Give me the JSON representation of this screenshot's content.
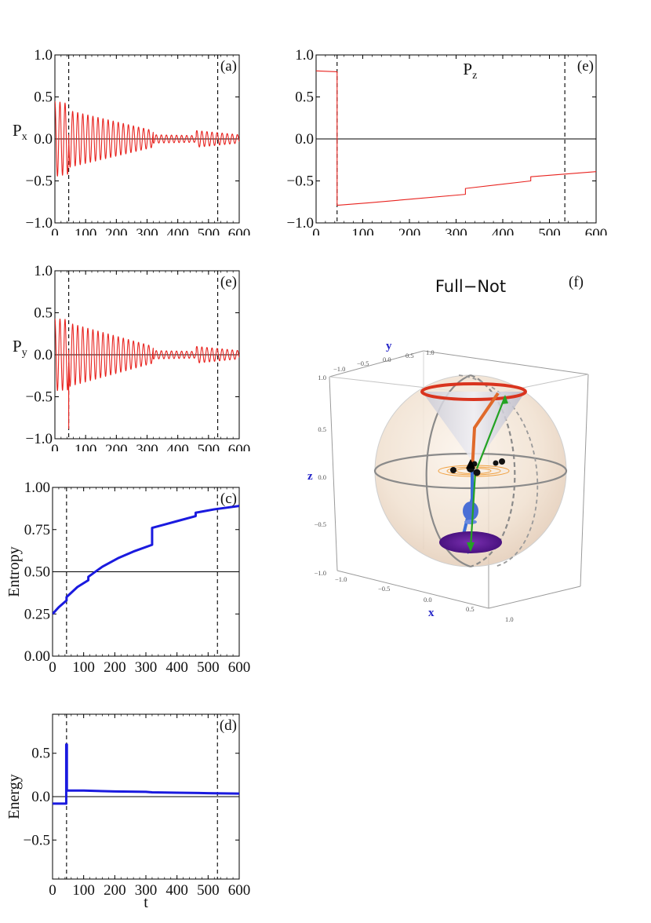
{
  "figure": {
    "f_title": "Full−Not",
    "f_label": "(f)",
    "sphere_axis_x": "x",
    "sphere_axis_y": "y",
    "sphere_axis_z": "z",
    "sphere_ticks": [
      "−1.0",
      "−0.5",
      "0.0",
      "0.5",
      "1.0"
    ]
  },
  "colors": {
    "polarization": "#e8231f",
    "thermo": "#1a1adf",
    "marker": "#000000",
    "axis_label_3d": "#2626c8",
    "cone_red": "#d9341e",
    "arrow_green": "#23a323",
    "disc_purple": "#5b1a8f"
  },
  "chart_data": [
    {
      "id": "px",
      "type": "line",
      "panel_label": "(a)",
      "title": "",
      "ylabel": "P",
      "ylabel_sub": "x",
      "xlabel": "",
      "xlim": [
        0,
        600
      ],
      "ylim": [
        -1.0,
        1.0
      ],
      "xticks": [
        "0",
        "100",
        "200",
        "300",
        "400",
        "500",
        "600"
      ],
      "yticks": [
        "−1.0",
        "−0.5",
        "0.0",
        "0.5",
        "1.0"
      ],
      "markers_t": [
        45,
        530
      ],
      "zero_line": 0,
      "series": [
        {
          "name": "Px",
          "model": "damped_oscillation",
          "period": 16.5,
          "segments": [
            {
              "t0": 0,
              "t1": 45,
              "amp_start": 0.45,
              "amp_end": 0.42
            },
            {
              "t0": 45,
              "t1": 320,
              "amp_start": 0.34,
              "amp_end": 0.1
            },
            {
              "t0": 320,
              "t1": 460,
              "amp_start": 0.05,
              "amp_end": 0.04
            },
            {
              "t0": 460,
              "t1": 600,
              "amp_start": 0.1,
              "amp_end": 0.05
            }
          ]
        }
      ]
    },
    {
      "id": "pz",
      "type": "line",
      "panel_label": "(e)",
      "title": "P",
      "title_sub": "z",
      "ylabel": "",
      "xlabel": "",
      "xlim": [
        0,
        600
      ],
      "ylim": [
        -1.0,
        1.0
      ],
      "xticks": [
        "0",
        "100",
        "200",
        "300",
        "400",
        "500",
        "600"
      ],
      "yticks": [
        "−1.0",
        "−0.5",
        "0.0",
        "0.5",
        "1.0"
      ],
      "markers_t": [
        45,
        533
      ],
      "zero_line": 0,
      "series": [
        {
          "name": "Pz",
          "x": [
            0,
            45,
            45,
            115,
            320,
            320,
            460,
            460,
            600
          ],
          "y": [
            0.81,
            0.8,
            -0.79,
            -0.76,
            -0.66,
            -0.59,
            -0.5,
            -0.45,
            -0.39
          ]
        }
      ]
    },
    {
      "id": "py",
      "type": "line",
      "panel_label": "(e)",
      "title": "",
      "ylabel": "P",
      "ylabel_sub": "y",
      "xlabel": "",
      "xlim": [
        0,
        600
      ],
      "ylim": [
        -1.0,
        1.0
      ],
      "xticks": [
        "0",
        "100",
        "200",
        "300",
        "400",
        "500",
        "600"
      ],
      "yticks": [
        "−1.0",
        "−0.5",
        "0.0",
        "0.5",
        "1.0"
      ],
      "markers_t": [
        45,
        530
      ],
      "zero_line": 0,
      "series": [
        {
          "name": "Py",
          "model": "damped_oscillation",
          "period": 16.5,
          "spike": {
            "t": 45,
            "y": -0.88
          },
          "segments": [
            {
              "t0": 0,
              "t1": 45,
              "amp_start": 0.43,
              "amp_end": 0.42
            },
            {
              "t0": 45,
              "t1": 320,
              "amp_start": 0.38,
              "amp_end": 0.1
            },
            {
              "t0": 320,
              "t1": 460,
              "amp_start": 0.05,
              "amp_end": 0.04
            },
            {
              "t0": 460,
              "t1": 600,
              "amp_start": 0.1,
              "amp_end": 0.05
            }
          ]
        }
      ]
    },
    {
      "id": "entropy",
      "type": "line",
      "panel_label": "(c)",
      "title": "",
      "ylabel": "Entropy",
      "xlabel": "",
      "xlim": [
        0,
        600
      ],
      "ylim": [
        0.0,
        1.0
      ],
      "xticks": [
        "0",
        "100",
        "200",
        "300",
        "400",
        "500",
        "600"
      ],
      "yticks": [
        "0.00",
        "0.25",
        "0.50",
        "0.75",
        "1.00"
      ],
      "markers_t": [
        45,
        530
      ],
      "zero_line": 0.5,
      "series": [
        {
          "name": "Entropy",
          "x": [
            0,
            20,
            45,
            45,
            80,
            115,
            115,
            160,
            210,
            260,
            320,
            320,
            360,
            400,
            460,
            460,
            520,
            560,
            600
          ],
          "y": [
            0.25,
            0.29,
            0.33,
            0.35,
            0.41,
            0.45,
            0.47,
            0.53,
            0.58,
            0.62,
            0.66,
            0.76,
            0.78,
            0.8,
            0.83,
            0.85,
            0.87,
            0.88,
            0.89
          ]
        }
      ]
    },
    {
      "id": "energy",
      "type": "line",
      "panel_label": "(d)",
      "title": "",
      "ylabel": "Energy",
      "xlabel": "t",
      "xlim": [
        0,
        600
      ],
      "ylim": [
        -0.95,
        0.95
      ],
      "xticks": [
        "0",
        "100",
        "200",
        "300",
        "400",
        "500",
        "600"
      ],
      "yticks": [
        "−0.5",
        "0.0",
        "0.5"
      ],
      "ytick_values": [
        -0.5,
        0.0,
        0.5
      ],
      "markers_t": [
        45,
        530
      ],
      "zero_line": 0,
      "series": [
        {
          "name": "Energy",
          "x": [
            0,
            44,
            44,
            46,
            46,
            100,
            200,
            300,
            320,
            400,
            500,
            600
          ],
          "y": [
            -0.08,
            -0.08,
            0.6,
            0.6,
            0.07,
            0.07,
            0.06,
            0.055,
            0.05,
            0.045,
            0.04,
            0.035
          ]
        }
      ]
    }
  ]
}
